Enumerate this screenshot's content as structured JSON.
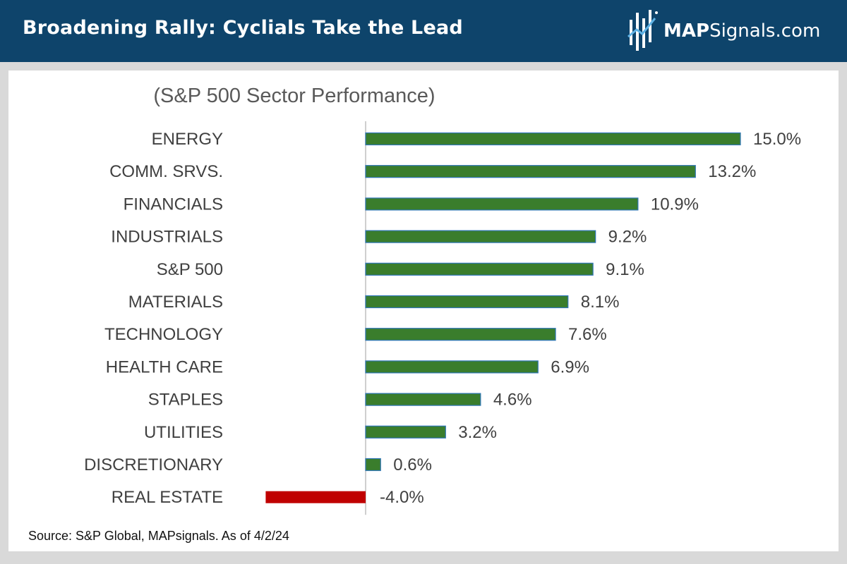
{
  "header": {
    "title": "Broadening Rally: Cyclials Take the Lead",
    "logo_bold": "MAP",
    "logo_rest": "Signals.com"
  },
  "colors": {
    "header_bg": "#0e446b",
    "positive": "#3a7d2c",
    "negative": "#c00000",
    "bar_edge": "#2e75b6"
  },
  "source_note": "Source: S&P Global, MAPsignals. As of 4/2/24",
  "chart_data": {
    "type": "bar",
    "orientation": "horizontal",
    "title": "(S&P 500 Sector Performance)",
    "categories": [
      "ENERGY",
      "COMM. SRVS.",
      "FINANCIALS",
      "INDUSTRIALS",
      "S&P 500",
      "MATERIALS",
      "TECHNOLOGY",
      "HEALTH CARE",
      "STAPLES",
      "UTILITIES",
      "DISCRETIONARY",
      "REAL ESTATE"
    ],
    "values": [
      15.0,
      13.2,
      10.9,
      9.2,
      9.1,
      8.1,
      7.6,
      6.9,
      4.6,
      3.2,
      0.6,
      -4.0
    ],
    "labels": [
      "15.0%",
      "13.2%",
      "10.9%",
      "9.2%",
      "9.1%",
      "8.1%",
      "7.6%",
      "6.9%",
      "4.6%",
      "3.2%",
      "0.6%",
      "-4.0%"
    ],
    "xlim": [
      -4.0,
      15.0
    ],
    "xlabel": "",
    "ylabel": "",
    "grid": false
  }
}
